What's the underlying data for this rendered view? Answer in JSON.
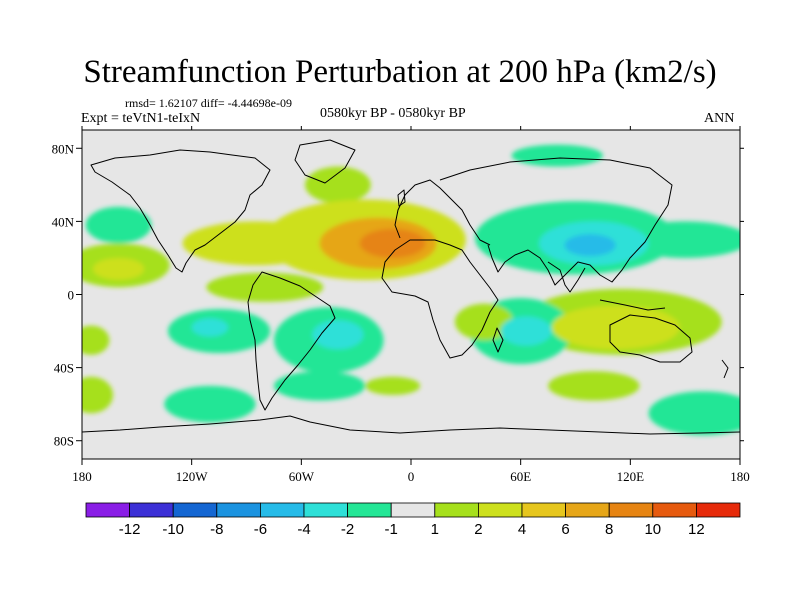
{
  "chart_data": {
    "type": "heatmap",
    "title": "Streamfunction Perturbation at 200 hPa (km2/s)",
    "stats_line": "rmsd= 1.62107 diff= -4.44698e-09",
    "experiment": "Expt = teVtN1-teIxN",
    "period": "0580kyr BP - 0580kyr BP",
    "season": "ANN",
    "x_ticks": [
      {
        "value": -180,
        "label": "180"
      },
      {
        "value": -120,
        "label": "120W"
      },
      {
        "value": -60,
        "label": "60W"
      },
      {
        "value": 0,
        "label": "0"
      },
      {
        "value": 60,
        "label": "60E"
      },
      {
        "value": 120,
        "label": "120E"
      },
      {
        "value": 180,
        "label": "180"
      }
    ],
    "y_ticks": [
      {
        "value": 80,
        "label": "80N"
      },
      {
        "value": 40,
        "label": "40N"
      },
      {
        "value": 0,
        "label": "0"
      },
      {
        "value": -40,
        "label": "40S"
      },
      {
        "value": -80,
        "label": "80S"
      }
    ],
    "xlim": [
      -180,
      180
    ],
    "ylim": [
      -90,
      90
    ],
    "colorbar": {
      "colors": [
        "#8a1ee6",
        "#3c30d6",
        "#1466d2",
        "#1b93e0",
        "#26bbe8",
        "#2ee0d8",
        "#24e696",
        "#e6e6e6",
        "#a6e01c",
        "#cde01e",
        "#e6c61e",
        "#e6a618",
        "#e68412",
        "#e65a0e",
        "#e62a0a"
      ],
      "labels": [
        "-12",
        "-10",
        "-8",
        "-6",
        "-4",
        "-2",
        "-1",
        "1",
        "2",
        "4",
        "6",
        "8",
        "10",
        "12"
      ]
    },
    "anomalies": [
      {
        "lon": -25,
        "lat": 30,
        "rx": 55,
        "ry": 22,
        "level": 2
      },
      {
        "lon": -18,
        "lat": 28,
        "rx": 32,
        "ry": 14,
        "level": 4
      },
      {
        "lon": -10,
        "lat": 28,
        "rx": 18,
        "ry": 8,
        "level": 5
      },
      {
        "lon": -85,
        "lat": 28,
        "rx": 40,
        "ry": 12,
        "level": 2
      },
      {
        "lon": -160,
        "lat": 16,
        "rx": 28,
        "ry": 12,
        "level": 1
      },
      {
        "lon": -160,
        "lat": 14,
        "rx": 14,
        "ry": 6,
        "level": 2
      },
      {
        "lon": -80,
        "lat": 4,
        "rx": 32,
        "ry": 8,
        "level": 1
      },
      {
        "lon": 90,
        "lat": 31,
        "rx": 55,
        "ry": 20,
        "level": -1
      },
      {
        "lon": 100,
        "lat": 28,
        "rx": 30,
        "ry": 12,
        "level": -2
      },
      {
        "lon": 98,
        "lat": 27,
        "rx": 14,
        "ry": 6,
        "level": -3
      },
      {
        "lon": 150,
        "lat": 30,
        "rx": 35,
        "ry": 10,
        "level": -1
      },
      {
        "lon": 115,
        "lat": -15,
        "rx": 55,
        "ry": 18,
        "level": 1
      },
      {
        "lon": 112,
        "lat": -18,
        "rx": 35,
        "ry": 12,
        "level": 2
      },
      {
        "lon": 60,
        "lat": -20,
        "rx": 28,
        "ry": 18,
        "level": -1
      },
      {
        "lon": 63,
        "lat": -20,
        "rx": 14,
        "ry": 8,
        "level": -2
      },
      {
        "lon": -45,
        "lat": -25,
        "rx": 30,
        "ry": 18,
        "level": -1
      },
      {
        "lon": -40,
        "lat": -22,
        "rx": 14,
        "ry": 8,
        "level": -2
      },
      {
        "lon": -105,
        "lat": -20,
        "rx": 28,
        "ry": 12,
        "level": -1
      },
      {
        "lon": -110,
        "lat": -18,
        "rx": 10,
        "ry": 5,
        "level": -2
      },
      {
        "lon": 40,
        "lat": -15,
        "rx": 16,
        "ry": 10,
        "level": 1
      },
      {
        "lon": -110,
        "lat": -60,
        "rx": 25,
        "ry": 10,
        "level": -1
      },
      {
        "lon": 160,
        "lat": -65,
        "rx": 30,
        "ry": 12,
        "level": -1
      },
      {
        "lon": -175,
        "lat": -55,
        "rx": 12,
        "ry": 10,
        "level": 1
      },
      {
        "lon": -175,
        "lat": -25,
        "rx": 10,
        "ry": 8,
        "level": 1
      },
      {
        "lon": -160,
        "lat": 38,
        "rx": 18,
        "ry": 10,
        "level": -1
      },
      {
        "lon": 80,
        "lat": 76,
        "rx": 25,
        "ry": 6,
        "level": -1
      },
      {
        "lon": -40,
        "lat": 60,
        "rx": 18,
        "ry": 10,
        "level": 1
      },
      {
        "lon": -50,
        "lat": -50,
        "rx": 25,
        "ry": 8,
        "level": -1
      },
      {
        "lon": -10,
        "lat": -50,
        "rx": 15,
        "ry": 5,
        "level": 1
      },
      {
        "lon": 100,
        "lat": -50,
        "rx": 25,
        "ry": 8,
        "level": 1
      }
    ]
  }
}
